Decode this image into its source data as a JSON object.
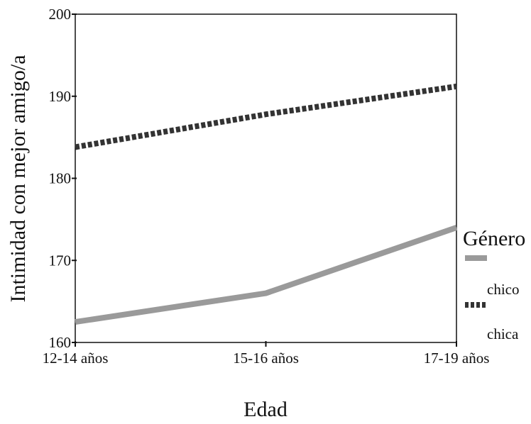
{
  "chart_data": {
    "type": "line",
    "categories": [
      "12-14 años",
      "15-16 años",
      "17-19 años"
    ],
    "series": [
      {
        "name": "chico",
        "values": [
          162.5,
          166.0,
          174.0
        ],
        "color": "#9a9a9a",
        "style": "solid"
      },
      {
        "name": "chica",
        "values": [
          183.8,
          187.8,
          191.2
        ],
        "color": "#333333",
        "style": "dotted"
      }
    ],
    "xlabel": "Edad",
    "ylabel": "Intimidad con mejor amigo/a",
    "ylim": [
      160,
      200
    ],
    "yticks": [
      160,
      170,
      180,
      190,
      200
    ],
    "grid": false,
    "legend": {
      "title": "Género",
      "placement": "right"
    }
  }
}
